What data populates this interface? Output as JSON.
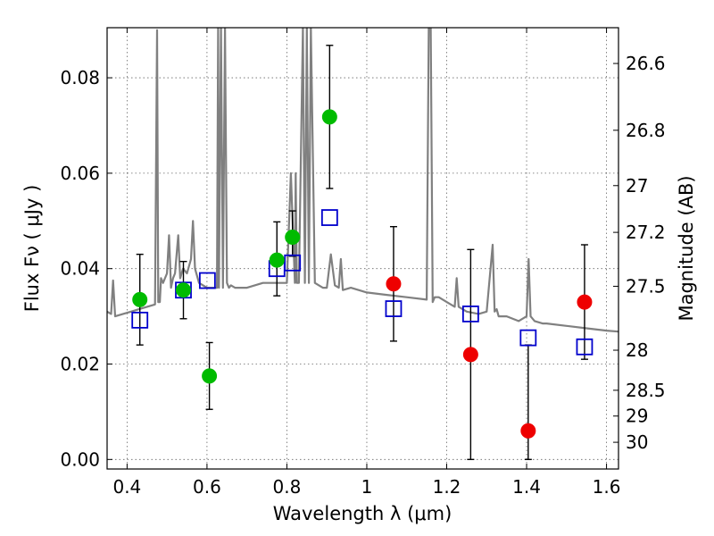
{
  "chart_data": {
    "type": "scatter",
    "xlabel": "Wavelength  λ (μm)",
    "ylabel": "Flux  Fν  ( μJy )",
    "ylabel_right": "Magnitude (AB)",
    "xlim": [
      0.35,
      1.63
    ],
    "ylim": [
      -0.002,
      0.0905
    ],
    "grid": true,
    "x_ticks": [
      0.4,
      0.6,
      0.8,
      1.0,
      1.2,
      1.4,
      1.6
    ],
    "x_tick_labels": [
      "0.4",
      "0.6",
      "0.8",
      "1",
      "1.2",
      "1.4",
      "1.6"
    ],
    "y_ticks": [
      0.0,
      0.02,
      0.04,
      0.06,
      0.08
    ],
    "y_tick_labels": [
      "0.00",
      "0.02",
      "0.04",
      "0.06",
      "0.08"
    ],
    "right_ticks": [
      {
        "label": "26.6",
        "flux": 0.083
      },
      {
        "label": "26.8",
        "flux": 0.069
      },
      {
        "label": "27",
        "flux": 0.0574
      },
      {
        "label": "27.2",
        "flux": 0.0476
      },
      {
        "label": "27.5",
        "flux": 0.0363
      },
      {
        "label": "28",
        "flux": 0.0229
      },
      {
        "label": "28.5",
        "flux": 0.0145
      },
      {
        "label": "29",
        "flux": 0.0091
      },
      {
        "label": "30",
        "flux": 0.0036
      }
    ],
    "series": [
      {
        "name": "model_spectrum",
        "kind": "line",
        "color": "#808080",
        "x": [
          0.35,
          0.36,
          0.365,
          0.37,
          0.39,
          0.41,
          0.43,
          0.45,
          0.47,
          0.475,
          0.478,
          0.482,
          0.485,
          0.49,
          0.5,
          0.505,
          0.51,
          0.515,
          0.52,
          0.528,
          0.533,
          0.54,
          0.55,
          0.56,
          0.565,
          0.57,
          0.58,
          0.6,
          0.625,
          0.628,
          0.63,
          0.635,
          0.64,
          0.645,
          0.65,
          0.655,
          0.66,
          0.67,
          0.7,
          0.74,
          0.78,
          0.8,
          0.81,
          0.82,
          0.822,
          0.825,
          0.83,
          0.84,
          0.845,
          0.85,
          0.855,
          0.86,
          0.87,
          0.88,
          0.89,
          0.9,
          0.91,
          0.92,
          0.93,
          0.935,
          0.94,
          0.96,
          1.0,
          1.05,
          1.1,
          1.15,
          1.155,
          1.16,
          1.165,
          1.17,
          1.18,
          1.2,
          1.22,
          1.225,
          1.23,
          1.25,
          1.28,
          1.3,
          1.315,
          1.32,
          1.325,
          1.33,
          1.35,
          1.38,
          1.4,
          1.405,
          1.41,
          1.42,
          1.44,
          1.45,
          1.5,
          1.55,
          1.6,
          1.63
        ],
        "y": [
          0.031,
          0.0305,
          0.0375,
          0.03,
          0.0305,
          0.031,
          0.0315,
          0.032,
          0.0325,
          0.09,
          0.033,
          0.033,
          0.038,
          0.037,
          0.039,
          0.047,
          0.036,
          0.038,
          0.039,
          0.047,
          0.038,
          0.04,
          0.039,
          0.042,
          0.05,
          0.04,
          0.037,
          0.036,
          0.036,
          0.091,
          0.036,
          0.091,
          0.036,
          0.091,
          0.037,
          0.036,
          0.0365,
          0.036,
          0.036,
          0.037,
          0.037,
          0.037,
          0.06,
          0.037,
          0.06,
          0.037,
          0.037,
          0.091,
          0.037,
          0.091,
          0.037,
          0.091,
          0.037,
          0.0365,
          0.036,
          0.036,
          0.043,
          0.0365,
          0.036,
          0.042,
          0.0355,
          0.036,
          0.035,
          0.0345,
          0.034,
          0.0335,
          0.091,
          0.091,
          0.033,
          0.034,
          0.034,
          0.033,
          0.032,
          0.038,
          0.032,
          0.031,
          0.0305,
          0.031,
          0.045,
          0.031,
          0.0315,
          0.03,
          0.03,
          0.029,
          0.03,
          0.042,
          0.03,
          0.029,
          0.0285,
          0.0285,
          0.028,
          0.0275,
          0.027,
          0.0268
        ]
      },
      {
        "name": "model_photometry",
        "kind": "open_square",
        "color": "#0000cc",
        "x": [
          0.432,
          0.541,
          0.601,
          0.775,
          0.814,
          0.907,
          1.067,
          1.26,
          1.404,
          1.545
        ],
        "y": [
          0.0292,
          0.0355,
          0.0375,
          0.04,
          0.0412,
          0.0507,
          0.0316,
          0.0305,
          0.0255,
          0.0236
        ]
      },
      {
        "name": "detections",
        "kind": "filled_circle",
        "color": "#00bb00",
        "x": [
          0.432,
          0.541,
          0.606,
          0.775,
          0.814,
          0.907
        ],
        "y": [
          0.0335,
          0.0355,
          0.0175,
          0.0418,
          0.0466,
          0.0718
        ],
        "yerr_low": [
          0.0095,
          0.006,
          0.007,
          0.0075,
          0.004,
          0.015
        ],
        "yerr_high": [
          0.0095,
          0.006,
          0.007,
          0.008,
          0.0055,
          0.015
        ]
      },
      {
        "name": "nondetections",
        "kind": "filled_circle",
        "color": "#ee0000",
        "x": [
          1.067,
          1.26,
          1.404,
          1.545
        ],
        "y": [
          0.0368,
          0.022,
          0.006,
          0.033
        ],
        "yerr_low": [
          0.012,
          0.022,
          0.006,
          0.012
        ],
        "yerr_high": [
          0.012,
          0.022,
          0.018,
          0.012
        ]
      }
    ]
  }
}
